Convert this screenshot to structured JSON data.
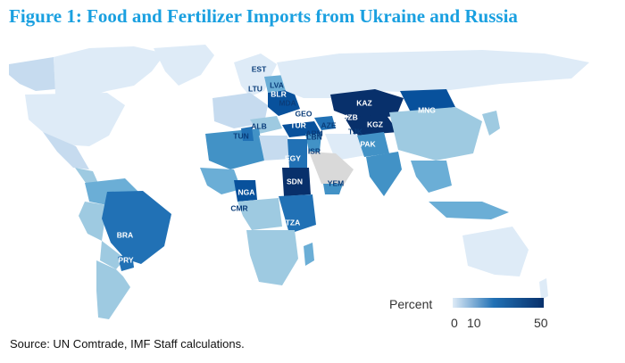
{
  "title": "Figure 1: Food and Fertilizer Imports from Ukraine and Russia",
  "source": "Source: UN Comtrade, IMF Staff calculations.",
  "legend": {
    "title": "Percent",
    "ticks": [
      "0",
      "10",
      "50"
    ],
    "colors": {
      "low": "#deebf7",
      "mid": "#2171b5",
      "high": "#08306b"
    }
  },
  "colors": {
    "no_data": "#d9d9d9",
    "scale": [
      "#deebf7",
      "#c6dbef",
      "#9ecae1",
      "#6baed6",
      "#4292c6",
      "#2171b5",
      "#08519c",
      "#08306b"
    ]
  },
  "country_labels": [
    "EST",
    "LVA",
    "LTU",
    "BLR",
    "MDA",
    "KAZ",
    "MNG",
    "GEO",
    "UZB",
    "KGZ",
    "TUR",
    "AZE",
    "ARM",
    "TJK",
    "ALB",
    "LBN",
    "TUN",
    "ISR",
    "PAK",
    "EGY",
    "SDN",
    "YEM",
    "NGA",
    "CMR",
    "TZA",
    "BRA",
    "PRY"
  ]
}
